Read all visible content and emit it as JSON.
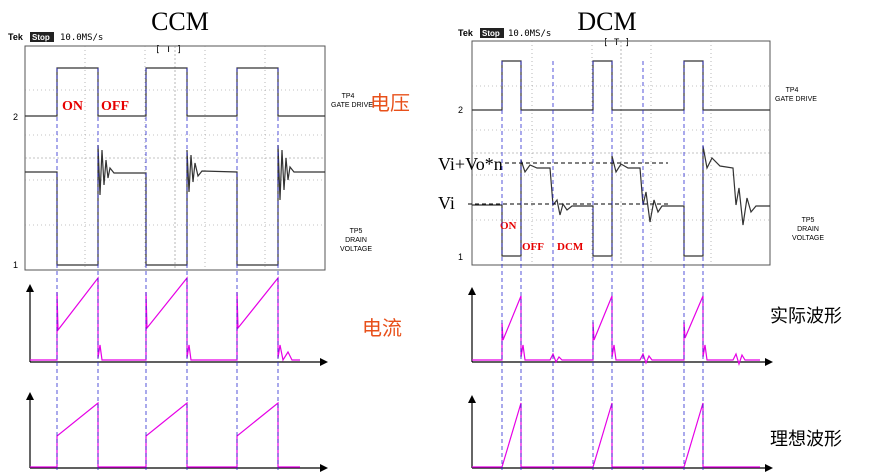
{
  "titles": {
    "ccm": "CCM",
    "dcm": "DCM"
  },
  "scope_header": {
    "tek": "Tek",
    "stop": "Stop",
    "rate": "10.0MS/s",
    "bracket": "[ T ]"
  },
  "channels": {
    "ch2_marker": "2",
    "ch1_marker": "1",
    "gate_tp": "TP4",
    "gate_name": "GATE DRIVE",
    "drain_tp": "TP5",
    "drain_l1": "DRAIN",
    "drain_l2": "VOLTAGE"
  },
  "labels": {
    "voltage": "电压",
    "current": "电流",
    "actual": "实际波形",
    "ideal": "理想波形",
    "on": "ON",
    "off": "OFF",
    "dcm_phase": "DCM",
    "vi_vo": "Vi+Vo*n",
    "vi": "Vi"
  },
  "colors": {
    "scope_trace": "#333333",
    "grid": "#888888",
    "current_trace": "#e600e6",
    "state_label": "#e60000",
    "chinese_label": "#e8501a",
    "guide": "#2a2ad0"
  }
}
